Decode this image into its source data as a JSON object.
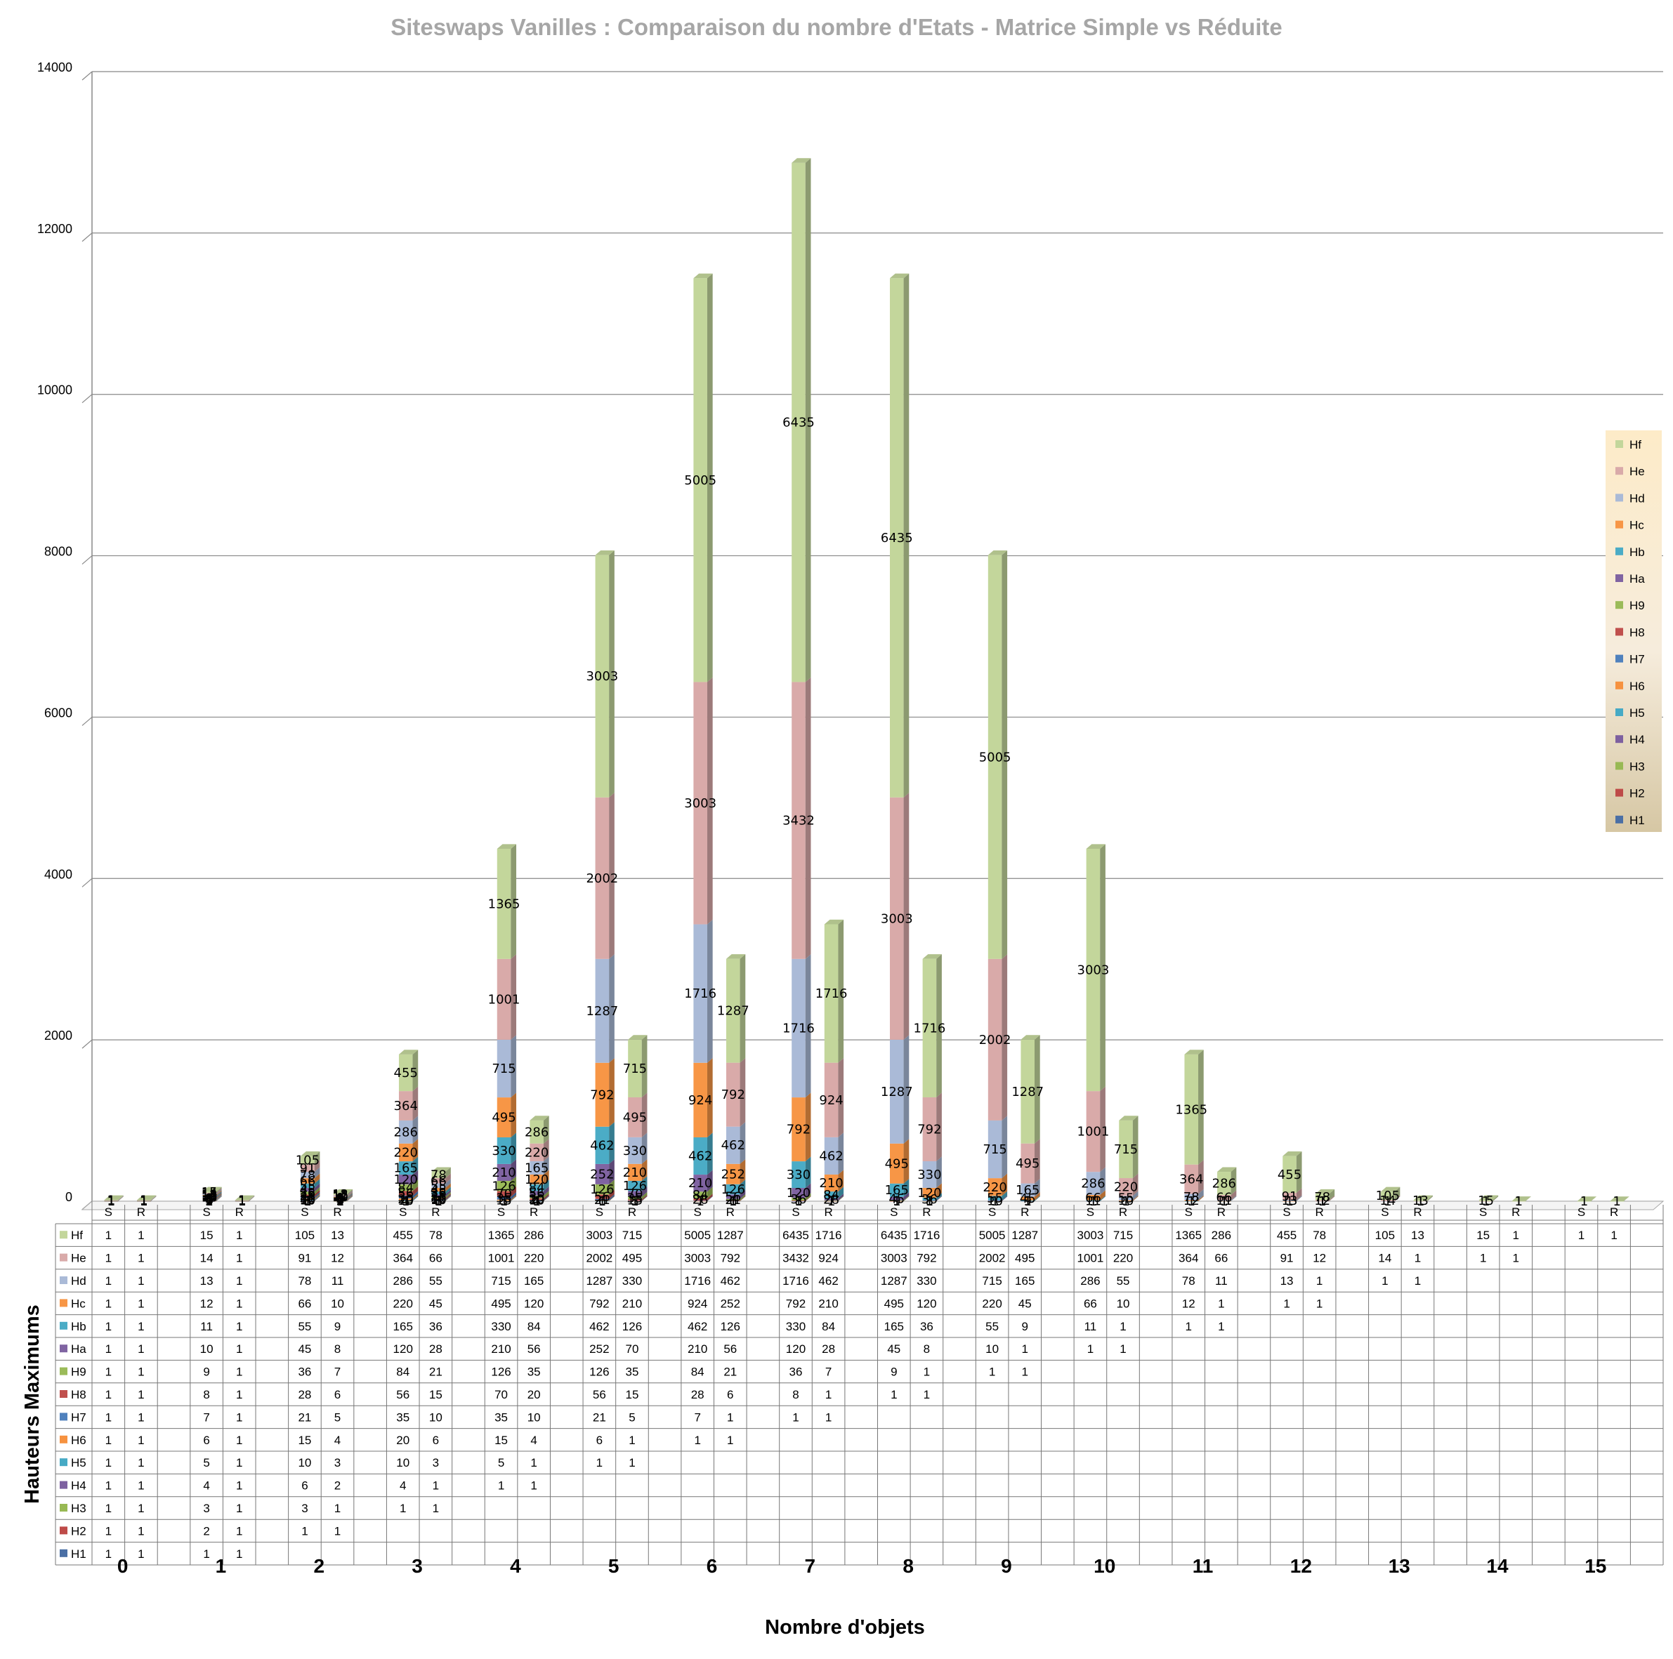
{
  "chart_data": {
    "type": "bar",
    "stacked": true,
    "three_d": true,
    "title": "Siteswaps Vanilles : Comparaison du nombre d'Etats  -  Matrice Simple vs Réduite",
    "xlabel": "Nombre d'objets",
    "ylabel": "Hauteurs Maximums",
    "ylim": [
      0,
      14000
    ],
    "yticks": [
      0,
      2000,
      4000,
      6000,
      8000,
      10000,
      12000,
      14000
    ],
    "grid": true,
    "legend_position": "right",
    "groups": [
      "0",
      "1",
      "2",
      "3",
      "4",
      "5",
      "6",
      "7",
      "8",
      "9",
      "10",
      "11",
      "12",
      "13",
      "14",
      "15"
    ],
    "categories": [
      "S",
      "R",
      "S",
      "R",
      "S",
      "R",
      "S",
      "R",
      "S",
      "R",
      "S",
      "R",
      "S",
      "R",
      "S",
      "R",
      "S",
      "R",
      "S",
      "R",
      "S",
      "R",
      "S",
      "R",
      "S",
      "R",
      "S",
      "R",
      "S",
      "R",
      "S",
      "R"
    ],
    "series": [
      {
        "name": "H1",
        "color": "#4a6fa5",
        "values": [
          1,
          1,
          1,
          1,
          null,
          null,
          null,
          null,
          null,
          null,
          null,
          null,
          null,
          null,
          null,
          null,
          null,
          null,
          null,
          null,
          null,
          null,
          null,
          null,
          null,
          null,
          null,
          null,
          null,
          null,
          null,
          null
        ]
      },
      {
        "name": "H2",
        "color": "#be4b48",
        "values": [
          1,
          1,
          2,
          1,
          1,
          1,
          null,
          null,
          null,
          null,
          null,
          null,
          null,
          null,
          null,
          null,
          null,
          null,
          null,
          null,
          null,
          null,
          null,
          null,
          null,
          null,
          null,
          null,
          null,
          null,
          null,
          null
        ]
      },
      {
        "name": "H3",
        "color": "#98b954",
        "values": [
          1,
          1,
          3,
          1,
          3,
          1,
          1,
          1,
          null,
          null,
          null,
          null,
          null,
          null,
          null,
          null,
          null,
          null,
          null,
          null,
          null,
          null,
          null,
          null,
          null,
          null,
          null,
          null,
          null,
          null,
          null,
          null
        ]
      },
      {
        "name": "H4",
        "color": "#7d60a0",
        "values": [
          1,
          1,
          4,
          1,
          6,
          2,
          4,
          1,
          1,
          1,
          null,
          null,
          null,
          null,
          null,
          null,
          null,
          null,
          null,
          null,
          null,
          null,
          null,
          null,
          null,
          null,
          null,
          null,
          null,
          null,
          null,
          null
        ]
      },
      {
        "name": "H5",
        "color": "#46aac5",
        "values": [
          1,
          1,
          5,
          1,
          10,
          3,
          10,
          3,
          5,
          1,
          1,
          1,
          null,
          null,
          null,
          null,
          null,
          null,
          null,
          null,
          null,
          null,
          null,
          null,
          null,
          null,
          null,
          null,
          null,
          null,
          null,
          null
        ]
      },
      {
        "name": "H6",
        "color": "#f69240",
        "values": [
          1,
          1,
          6,
          1,
          15,
          4,
          20,
          6,
          15,
          4,
          6,
          1,
          1,
          1,
          null,
          null,
          null,
          null,
          null,
          null,
          null,
          null,
          null,
          null,
          null,
          null,
          null,
          null,
          null,
          null,
          null,
          null
        ]
      },
      {
        "name": "H7",
        "color": "#4f81bd",
        "values": [
          1,
          1,
          7,
          1,
          21,
          5,
          35,
          10,
          35,
          10,
          21,
          5,
          7,
          1,
          1,
          1,
          null,
          null,
          null,
          null,
          null,
          null,
          null,
          null,
          null,
          null,
          null,
          null,
          null,
          null,
          null,
          null
        ]
      },
      {
        "name": "H8",
        "color": "#c0504d",
        "values": [
          1,
          1,
          8,
          1,
          28,
          6,
          56,
          15,
          70,
          20,
          56,
          15,
          28,
          6,
          8,
          1,
          1,
          1,
          null,
          null,
          null,
          null,
          null,
          null,
          null,
          null,
          null,
          null,
          null,
          null,
          null,
          null
        ]
      },
      {
        "name": "H9",
        "color": "#9bbb59",
        "values": [
          1,
          1,
          9,
          1,
          36,
          7,
          84,
          21,
          126,
          35,
          126,
          35,
          84,
          21,
          36,
          7,
          9,
          1,
          1,
          1,
          null,
          null,
          null,
          null,
          null,
          null,
          null,
          null,
          null,
          null,
          null,
          null
        ]
      },
      {
        "name": "Ha",
        "color": "#8064a2",
        "values": [
          1,
          1,
          10,
          1,
          45,
          8,
          120,
          28,
          210,
          56,
          252,
          70,
          210,
          56,
          120,
          28,
          45,
          8,
          10,
          1,
          1,
          1,
          null,
          null,
          null,
          null,
          null,
          null,
          null,
          null,
          null,
          null
        ]
      },
      {
        "name": "Hb",
        "color": "#4bacc6",
        "values": [
          1,
          1,
          11,
          1,
          55,
          9,
          165,
          36,
          330,
          84,
          462,
          126,
          462,
          126,
          330,
          84,
          165,
          36,
          55,
          9,
          11,
          1,
          1,
          1,
          null,
          null,
          null,
          null,
          null,
          null,
          null,
          null
        ]
      },
      {
        "name": "Hc",
        "color": "#f79646",
        "values": [
          1,
          1,
          12,
          1,
          66,
          10,
          220,
          45,
          495,
          120,
          792,
          210,
          924,
          252,
          792,
          210,
          495,
          120,
          220,
          45,
          66,
          10,
          12,
          1,
          1,
          1,
          null,
          null,
          null,
          null,
          null,
          null
        ]
      },
      {
        "name": "Hd",
        "color": "#aabad7",
        "values": [
          1,
          1,
          13,
          1,
          78,
          11,
          286,
          55,
          715,
          165,
          1287,
          330,
          1716,
          462,
          1716,
          462,
          1287,
          330,
          715,
          165,
          286,
          55,
          78,
          11,
          13,
          1,
          1,
          1,
          null,
          null,
          null,
          null
        ]
      },
      {
        "name": "He",
        "color": "#d9aaa9",
        "values": [
          1,
          1,
          14,
          1,
          91,
          12,
          364,
          66,
          1001,
          220,
          2002,
          495,
          3003,
          792,
          3432,
          924,
          3003,
          792,
          2002,
          495,
          1001,
          220,
          364,
          66,
          91,
          12,
          14,
          1,
          1,
          1,
          null,
          null
        ]
      },
      {
        "name": "Hf",
        "color": "#c3d69b",
        "values": [
          1,
          1,
          15,
          1,
          105,
          13,
          455,
          78,
          1365,
          286,
          3003,
          715,
          5005,
          1287,
          6435,
          1716,
          6435,
          1716,
          5005,
          1287,
          3003,
          715,
          1365,
          286,
          455,
          78,
          105,
          13,
          15,
          1,
          1,
          1
        ]
      }
    ]
  }
}
